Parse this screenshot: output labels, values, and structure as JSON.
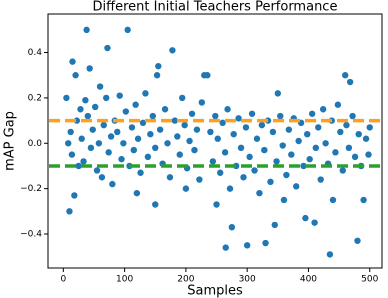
{
  "chart_data": {
    "type": "scatter",
    "title": "Different Initial Teachers Performance",
    "xlabel": "Samples",
    "ylabel": "mAP Gap",
    "xlim": [
      -25,
      520
    ],
    "ylim": [
      -0.55,
      0.57
    ],
    "xticks": [
      0,
      100,
      200,
      300,
      400,
      500
    ],
    "yticks": [
      {
        "value": -0.4,
        "label": "−0.4"
      },
      {
        "value": -0.2,
        "label": "−0.2"
      },
      {
        "value": 0,
        "label": "0.0"
      },
      0.2,
      0.4
    ],
    "hlines": [
      {
        "value": 0.1,
        "color": "#ff9f1c"
      },
      {
        "value": -0.1,
        "color": "#2ca02c"
      }
    ],
    "series": [
      {
        "color": "#1f77b4",
        "x": [
          38,
          105,
          72,
          178,
          15,
          20,
          43,
          155,
          230,
          235,
          460,
          468,
          350,
          10,
          18,
          265,
          275,
          300,
          330,
          345,
          435,
          480,
          395,
          410,
          360,
          440,
          490,
          150,
          120,
          200,
          250,
          5,
          8,
          12,
          14,
          22,
          25,
          28,
          30,
          33,
          36,
          40,
          45,
          48,
          52,
          55,
          58,
          60,
          63,
          66,
          70,
          74,
          78,
          80,
          84,
          88,
          92,
          95,
          98,
          102,
          108,
          112,
          115,
          118,
          122,
          126,
          130,
          134,
          138,
          142,
          146,
          150,
          153,
          158,
          162,
          166,
          170,
          174,
          182,
          186,
          190,
          194,
          198,
          202,
          206,
          210,
          214,
          218,
          222,
          226,
          240,
          244,
          248,
          252,
          256,
          260,
          264,
          268,
          272,
          278,
          282,
          286,
          290,
          294,
          298,
          304,
          308,
          312,
          316,
          320,
          324,
          328,
          334,
          338,
          342,
          348,
          354,
          358,
          364,
          368,
          372,
          376,
          380,
          384,
          388,
          392,
          398,
          402,
          406,
          412,
          416,
          420,
          424,
          428,
          432,
          438,
          444,
          448,
          452,
          456,
          462,
          466,
          472,
          476,
          482,
          486,
          494,
          498,
          500
        ],
        "values": [
          0.5,
          0.5,
          0.42,
          0.41,
          0.36,
          0.3,
          0.33,
          0.34,
          0.3,
          0.3,
          0.3,
          0.27,
          0.22,
          -0.3,
          -0.23,
          -0.46,
          -0.37,
          -0.45,
          -0.44,
          -0.36,
          -0.49,
          -0.43,
          -0.33,
          -0.35,
          -0.25,
          -0.25,
          -0.25,
          -0.27,
          -0.22,
          -0.2,
          -0.27,
          0.2,
          0.0,
          0.05,
          -0.05,
          0.1,
          -0.1,
          0.15,
          0.02,
          -0.08,
          0.19,
          0.12,
          -0.02,
          0.06,
          0.16,
          -0.12,
          0.0,
          0.25,
          -0.15,
          0.08,
          0.2,
          -0.04,
          0.03,
          -0.18,
          0.1,
          0.05,
          0.21,
          -0.07,
          0.0,
          0.14,
          -0.1,
          0.07,
          -0.03,
          0.17,
          0.02,
          -0.13,
          0.09,
          0.22,
          -0.06,
          0.04,
          0.12,
          -0.02,
          0.3,
          0.06,
          -0.09,
          0.15,
          0.0,
          -0.15,
          0.1,
          0.03,
          -0.05,
          0.2,
          0.08,
          -0.11,
          0.01,
          0.13,
          -0.03,
          0.06,
          -0.16,
          0.18,
          0.05,
          -0.08,
          0.12,
          0.02,
          -0.13,
          0.09,
          -0.04,
          0.15,
          -0.2,
          0.04,
          -0.1,
          0.11,
          -0.02,
          -0.15,
          0.07,
          -0.06,
          0.13,
          -0.12,
          0.02,
          -0.22,
          0.08,
          -0.03,
          0.1,
          -0.17,
          0.05,
          -0.08,
          0.12,
          -0.01,
          -0.14,
          0.06,
          -0.05,
          0.11,
          -0.19,
          0.01,
          0.09,
          -0.1,
          0.04,
          -0.07,
          0.13,
          -0.02,
          0.07,
          -0.16,
          0.15,
          0.0,
          -0.09,
          0.1,
          -0.04,
          0.17,
          0.05,
          -0.12,
          0.08,
          -0.02,
          0.12,
          -0.06,
          0.04,
          -0.1,
          0.02,
          -0.05,
          0.07
        ]
      }
    ]
  }
}
